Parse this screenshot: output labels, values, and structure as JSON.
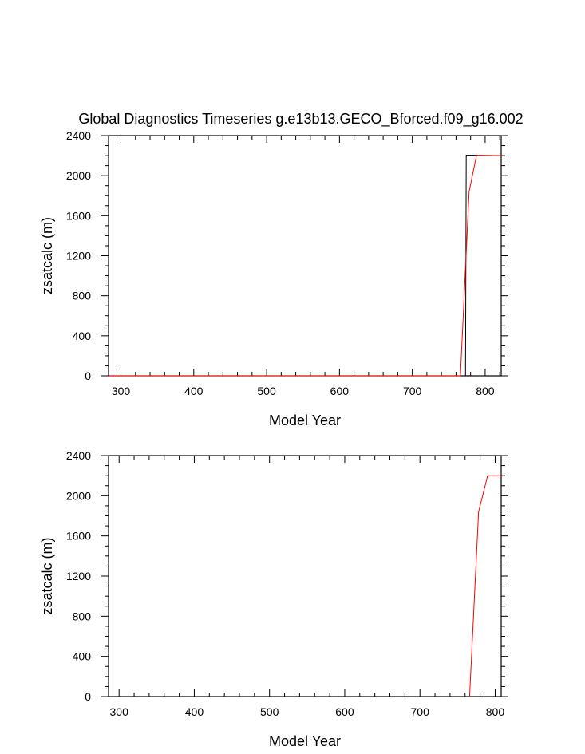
{
  "title": "Global Diagnostics Timeseries g.e13b13.GECO_Bforced.f09_g16.002",
  "colors": {
    "axis": "#000000",
    "red_series": "#ff0000",
    "black_series": "#000000"
  },
  "chart_data": [
    {
      "type": "line",
      "xlabel": "Model Year",
      "ylabel": "zsatcalc (m)",
      "xlim": [
        283,
        822
      ],
      "ylim": [
        0,
        2400
      ],
      "xticks": [
        "300",
        "400",
        "500",
        "600",
        "700",
        "800"
      ],
      "yticks": [
        "0",
        "400",
        "800",
        "1200",
        "1600",
        "2000",
        "2400"
      ],
      "grid": false,
      "series": [
        {
          "color": "#000000",
          "x": [
            283,
            772,
            773,
            774,
            775,
            822
          ],
          "y": [
            0,
            0,
            0,
            2205,
            2205,
            2200
          ]
        },
        {
          "color": "#ff0000",
          "x": [
            283,
            766,
            778,
            788,
            822
          ],
          "y": [
            0,
            0,
            1840,
            2200,
            2200
          ]
        }
      ]
    },
    {
      "type": "line",
      "xlabel": "Model Year",
      "ylabel": "zsatcalc (m)",
      "xlim": [
        286,
        808
      ],
      "ylim": [
        0,
        2400
      ],
      "xticks": [
        "300",
        "400",
        "500",
        "600",
        "700",
        "800"
      ],
      "yticks": [
        "0",
        "400",
        "800",
        "1200",
        "1600",
        "2000",
        "2400"
      ],
      "grid": false,
      "series": [
        {
          "color": "#000000",
          "x": [
            286,
            766
          ],
          "y": [
            0,
            0
          ]
        },
        {
          "color": "#ff0000",
          "x": [
            766,
            778,
            790,
            808
          ],
          "y": [
            0,
            1840,
            2200,
            2200
          ]
        }
      ]
    }
  ]
}
